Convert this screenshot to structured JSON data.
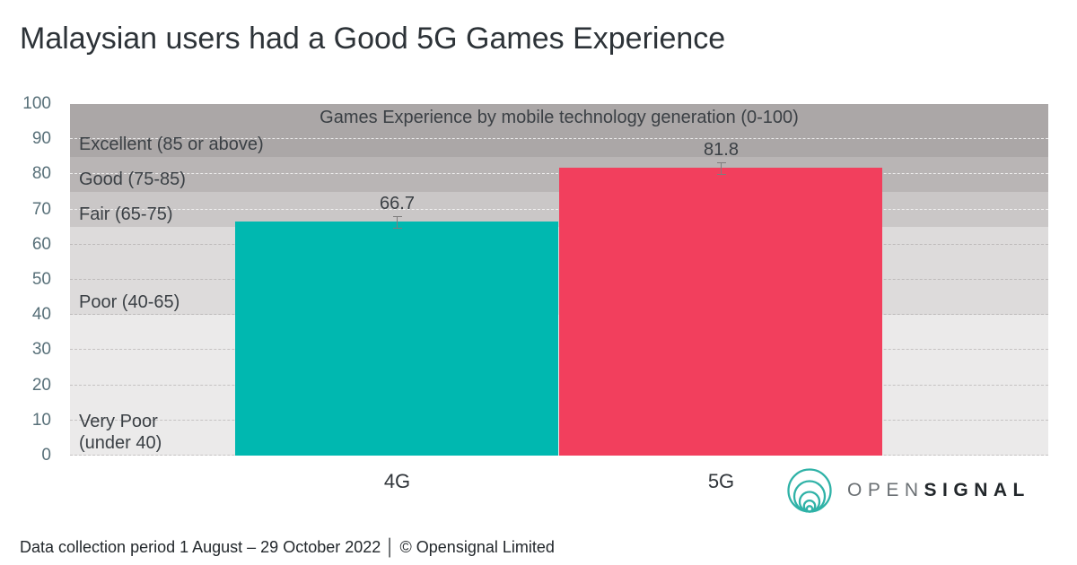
{
  "page": {
    "title": "Malaysian users had a Good 5G Games Experience",
    "footer": "Data collection period 1 August – 29 October 2022 │ © Opensignal Limited"
  },
  "logo": {
    "icon": "opensignal-rings-icon",
    "brand_open": "OPEN",
    "brand_signal": "SIGNAL",
    "mark_color": "#2fb2a7"
  },
  "chart_data": {
    "type": "bar",
    "title": "Games Experience by mobile technology generation (0-100)",
    "categories": [
      "4G",
      "5G"
    ],
    "values": [
      66.7,
      81.8
    ],
    "value_labels": [
      "66.7",
      "81.8"
    ],
    "bar_colors": [
      "#00b8b0",
      "#f23f5d"
    ],
    "ylim": [
      0,
      100
    ],
    "ytick_step": 10,
    "ytick_labels": [
      "0",
      "10",
      "20",
      "30",
      "40",
      "50",
      "60",
      "70",
      "80",
      "90",
      "100"
    ],
    "grid": "horizontal dashed every 10",
    "error_bars_visible": true,
    "axis_tick_color": "#587079",
    "bands": [
      {
        "label": "Excellent (85 or above)",
        "from": 85,
        "to": 100,
        "color": "#aba7a7"
      },
      {
        "label": "Good (75-85)",
        "from": 75,
        "to": 85,
        "color": "#b9b5b5"
      },
      {
        "label": "Fair (65-75)",
        "from": 65,
        "to": 75,
        "color": "#cac7c7"
      },
      {
        "label": "Poor (40-65)",
        "from": 40,
        "to": 65,
        "color": "#dddbdb"
      },
      {
        "label": "Very Poor\n(under 40)",
        "from": 0,
        "to": 40,
        "color": "#ebeaea"
      }
    ],
    "legend": "none"
  }
}
